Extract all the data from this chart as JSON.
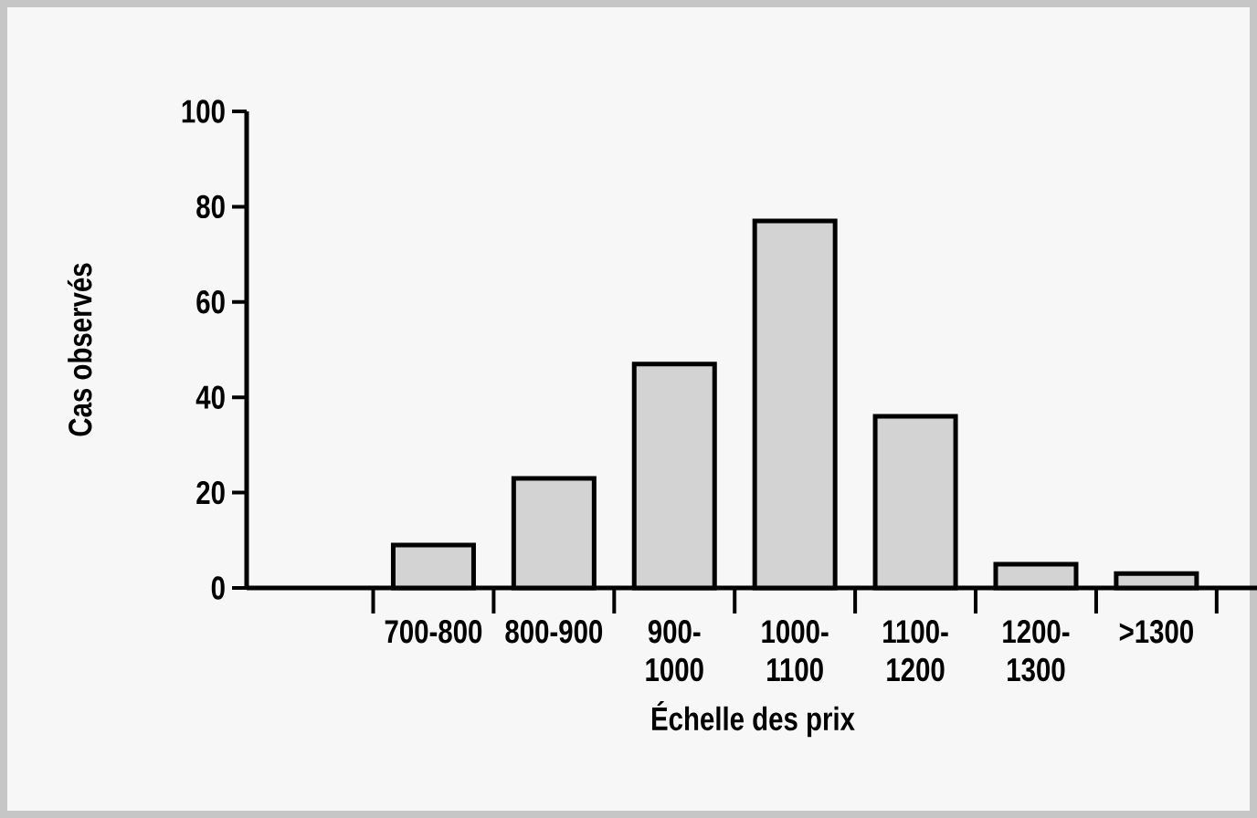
{
  "chart_data": {
    "type": "bar",
    "xlabel": "Échelle des prix",
    "ylabel": "Cas observés",
    "categories": [
      null,
      "700-800",
      "800-900",
      "900-1000",
      "1000-1100",
      "1100-1200",
      "1200-1300",
      ">1300"
    ],
    "values": [
      null,
      9,
      23,
      47,
      77,
      36,
      5,
      3
    ],
    "color": "#d3d3d3",
    "ylim": [
      0,
      100
    ],
    "yticks": [
      0,
      20,
      40,
      60,
      80,
      100
    ],
    "grid": false
  }
}
